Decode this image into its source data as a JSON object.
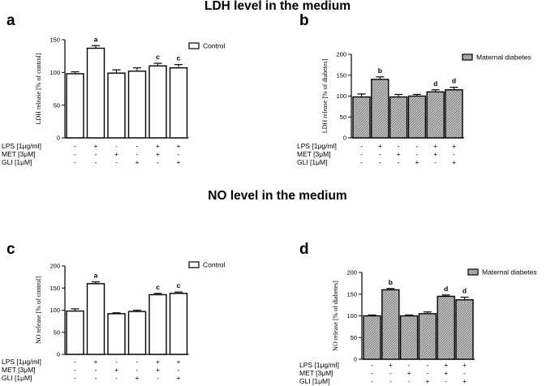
{
  "titles": {
    "ldh": "LDH level in the medium",
    "no": "NO level in the medium"
  },
  "treatment_labels": [
    "LPS [1μg/ml]",
    "MET [3μM]",
    "GLI [1μM]"
  ],
  "treatment_matrix": [
    [
      "-",
      "+",
      "-",
      "-",
      "+",
      "+"
    ],
    [
      "-",
      "-",
      "+",
      "-",
      "+",
      "-"
    ],
    [
      "-",
      "-",
      "-",
      "+",
      "-",
      "+"
    ]
  ],
  "colors": {
    "control_fill": "#ffffff",
    "diabetes_fill": "hatched-gray",
    "stroke": "#000000"
  },
  "chart_data": [
    {
      "panel": "a",
      "type": "bar",
      "pattern": "white",
      "legend": "Control",
      "legend_position": "top-right",
      "ylabel": "LDH release [% of control]",
      "ylim": [
        0,
        150
      ],
      "yticks": [
        0,
        50,
        100,
        150
      ],
      "series": [
        {
          "name": "Control",
          "values": [
            98,
            137,
            99,
            102,
            110,
            107
          ],
          "errors": [
            3,
            4,
            5,
            5,
            4,
            5
          ]
        }
      ],
      "annotations": [
        "",
        "a",
        "",
        "",
        "c",
        "c"
      ]
    },
    {
      "panel": "b",
      "type": "bar",
      "pattern": "hatched",
      "legend": "Maternal diabetes",
      "legend_position": "top-right",
      "ylabel": "LDH release [% of diabetes]",
      "ylim": [
        0,
        200
      ],
      "yticks": [
        0,
        50,
        100,
        150,
        200
      ],
      "series": [
        {
          "name": "Maternal diabetes",
          "values": [
            98,
            140,
            98,
            100,
            110,
            115
          ],
          "errors": [
            7,
            6,
            6,
            4,
            5,
            6
          ]
        }
      ],
      "annotations": [
        "",
        "b",
        "",
        "",
        "d",
        "d"
      ]
    },
    {
      "panel": "c",
      "type": "bar",
      "pattern": "white",
      "legend": "Control",
      "legend_position": "top-right",
      "ylabel": "NO release [% of control]",
      "ylim": [
        0,
        200
      ],
      "yticks": [
        0,
        50,
        100,
        150,
        200
      ],
      "series": [
        {
          "name": "Control",
          "values": [
            98,
            160,
            92,
            97,
            135,
            138
          ],
          "errors": [
            5,
            4,
            2,
            3,
            3,
            3
          ]
        }
      ],
      "annotations": [
        "",
        "a",
        "",
        "",
        "c",
        "c"
      ]
    },
    {
      "panel": "d",
      "type": "bar",
      "pattern": "hatched",
      "legend": "Maternal diabetes",
      "legend_position": "top-right",
      "ylabel": "NO release [% of diabetes]",
      "ylim": [
        0,
        200
      ],
      "yticks": [
        0,
        50,
        100,
        150,
        200
      ],
      "series": [
        {
          "name": "Maternal diabetes",
          "values": [
            100,
            160,
            100,
            105,
            145,
            137
          ],
          "errors": [
            2,
            3,
            2,
            4,
            3,
            6
          ]
        }
      ],
      "annotations": [
        "",
        "b",
        "",
        "",
        "d",
        "d"
      ]
    }
  ]
}
